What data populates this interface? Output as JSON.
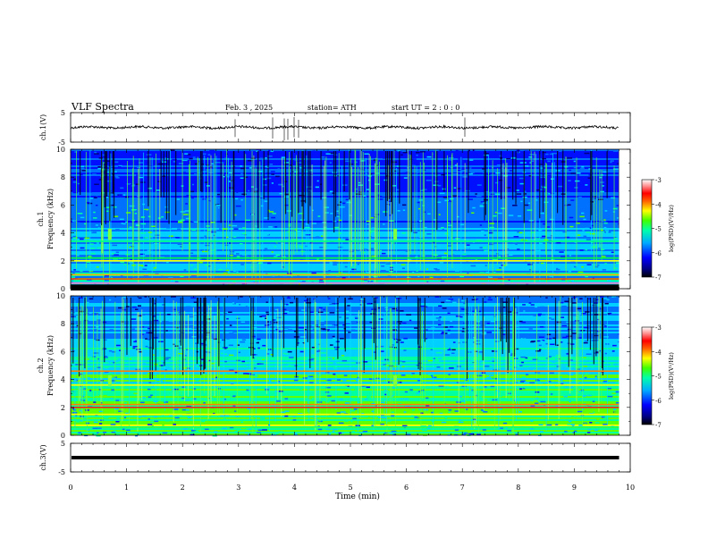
{
  "header": {
    "title": "VLF Spectra",
    "date": "Feb. 3 , 2025",
    "station": "station= ATH",
    "start": "start UT =   2 : 0 : 0"
  },
  "chart_data": [
    {
      "type": "line",
      "name": "ch1-waveform",
      "ylabel": "ch.1(V)",
      "ylim": [
        -5,
        5
      ],
      "yticks": [
        "5",
        "-5"
      ],
      "xlim": [
        0,
        10
      ],
      "baseline": 0
    },
    {
      "type": "heatmap",
      "name": "ch1-spectrogram",
      "ylabel": "ch.1\nFrequency (kHz)",
      "ylabel_lines": [
        "ch.1",
        "Frequency (kHz)"
      ],
      "ylim": [
        0,
        10
      ],
      "yticks": [
        "0",
        "2",
        "4",
        "6",
        "8",
        "10"
      ],
      "xlim": [
        0,
        10
      ],
      "data_end_min": 9.8,
      "colorbar": {
        "label": "log(PSD)(V²/Hz)",
        "range": [
          -7,
          -3
        ],
        "ticks": [
          "-3",
          "-4",
          "-5",
          "-6",
          "-7"
        ]
      }
    },
    {
      "type": "heatmap",
      "name": "ch2-spectrogram",
      "ylabel": "ch.2\nFrequency (kHz)",
      "ylabel_lines": [
        "ch.2",
        "Frequency (kHz)"
      ],
      "ylim": [
        0,
        10
      ],
      "yticks": [
        "0",
        "2",
        "4",
        "6",
        "8",
        "10"
      ],
      "xlim": [
        0,
        10
      ],
      "data_end_min": 9.8,
      "colorbar": {
        "label": "log(PSD)(V²/Hz)",
        "range": [
          -7,
          -3
        ],
        "ticks": [
          "-3",
          "-4",
          "-5",
          "-6",
          "-7"
        ]
      }
    },
    {
      "type": "line",
      "name": "ch3-waveform",
      "ylabel": "ch.3(V)",
      "ylim": [
        -5,
        5
      ],
      "yticks": [
        "5",
        "-5"
      ],
      "xlim": [
        0,
        10
      ],
      "baseline": 0
    }
  ],
  "xaxis": {
    "label": "Time (min)",
    "ticks": [
      "0",
      "1",
      "2",
      "3",
      "4",
      "5",
      "6",
      "7",
      "8",
      "9",
      "10"
    ]
  }
}
